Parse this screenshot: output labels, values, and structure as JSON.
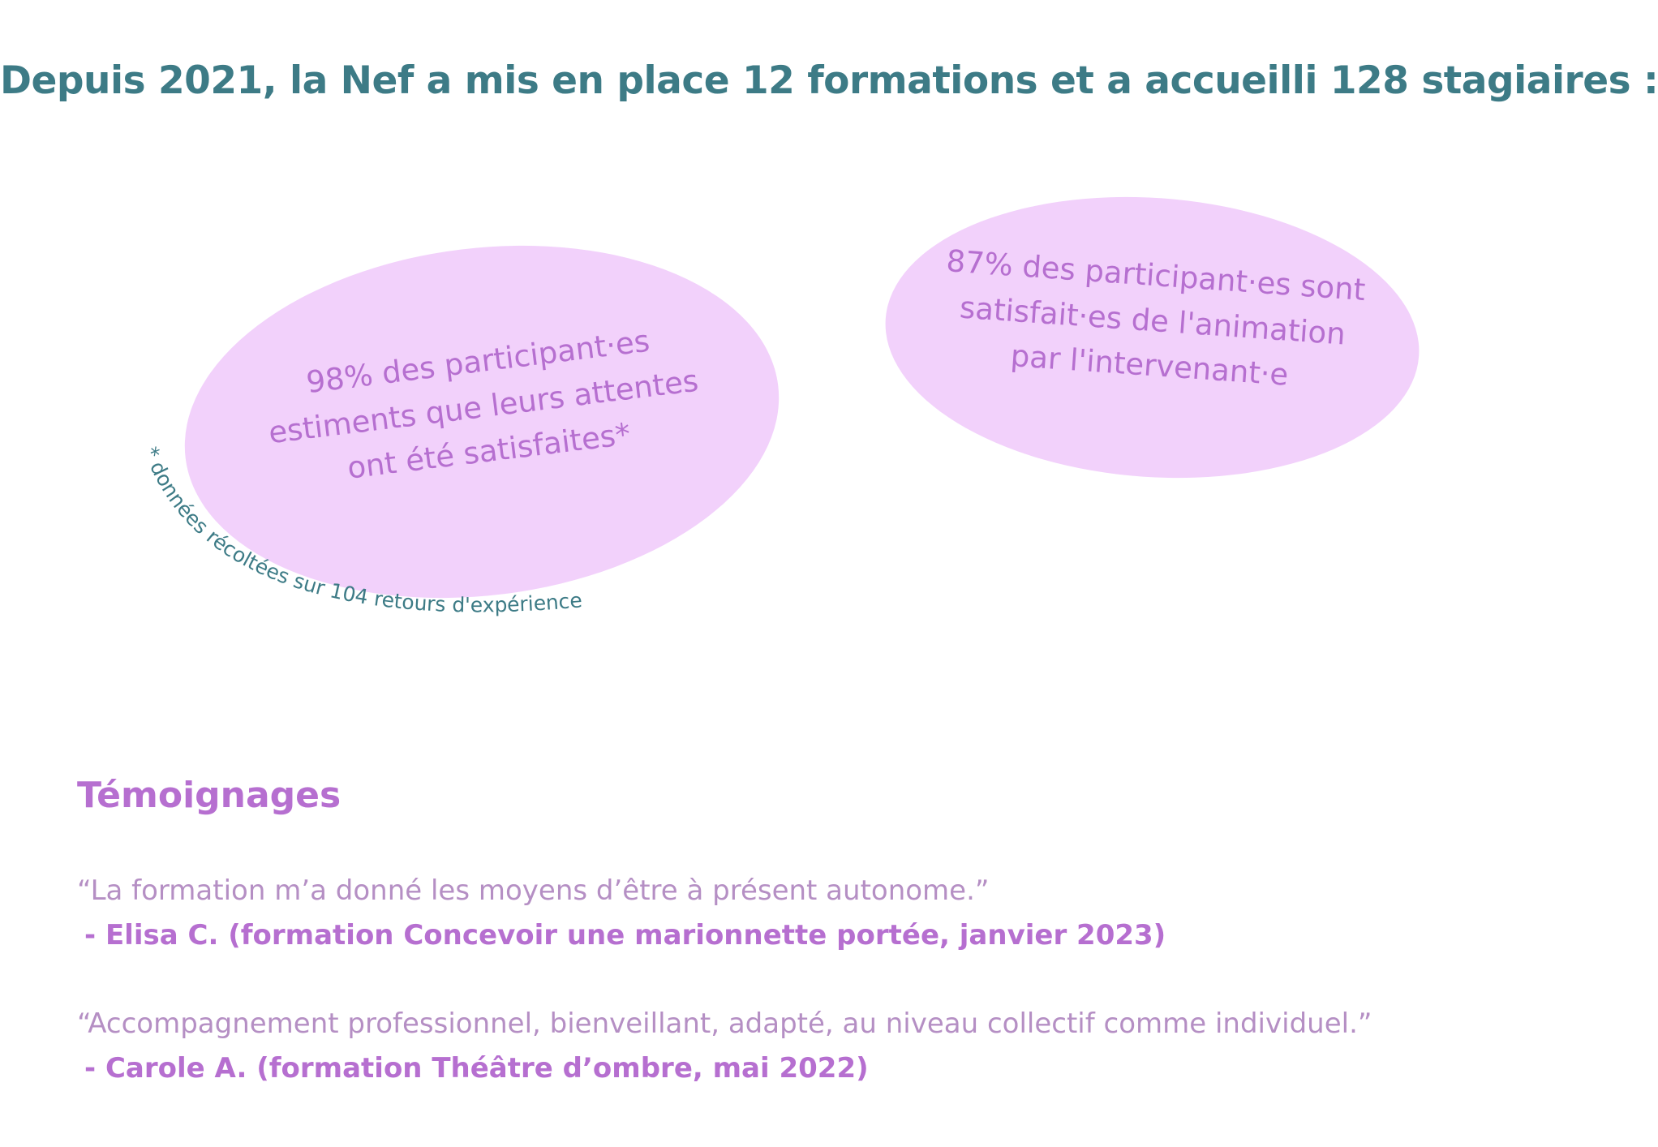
{
  "header": {
    "title": "Depuis 2021, la Nef a mis en place 12 formations et a accueilli 128 stagiaires :"
  },
  "stats": [
    {
      "text": "98% des participant·es\nestiments que leurs attentes\nont été satisfaites*"
    },
    {
      "text": "87% des participant·es sont\nsatisfait·es de l'animation\npar l'intervenant·e"
    }
  ],
  "footnote": "* données récoltées sur 104 retours d'expérience",
  "testimonials": {
    "title": "Témoignages",
    "items": [
      {
        "quote": "“La formation m’a donné les moyens d’être à présent autonome.”",
        "author": "- Elisa C. (formation Concevoir une marionnette portée, janvier 2023)"
      },
      {
        "quote": "“Accompagnement professionnel, bienveillant, adapté, au niveau collectif comme individuel.”",
        "author": "- Carole A. (formation Théâtre d’ombre, mai 2022)"
      }
    ]
  },
  "colors": {
    "teal": "#3d7b86",
    "purple": "#b66fd0",
    "bubble": "#f2d1fb",
    "quote": "#b58fc4"
  }
}
